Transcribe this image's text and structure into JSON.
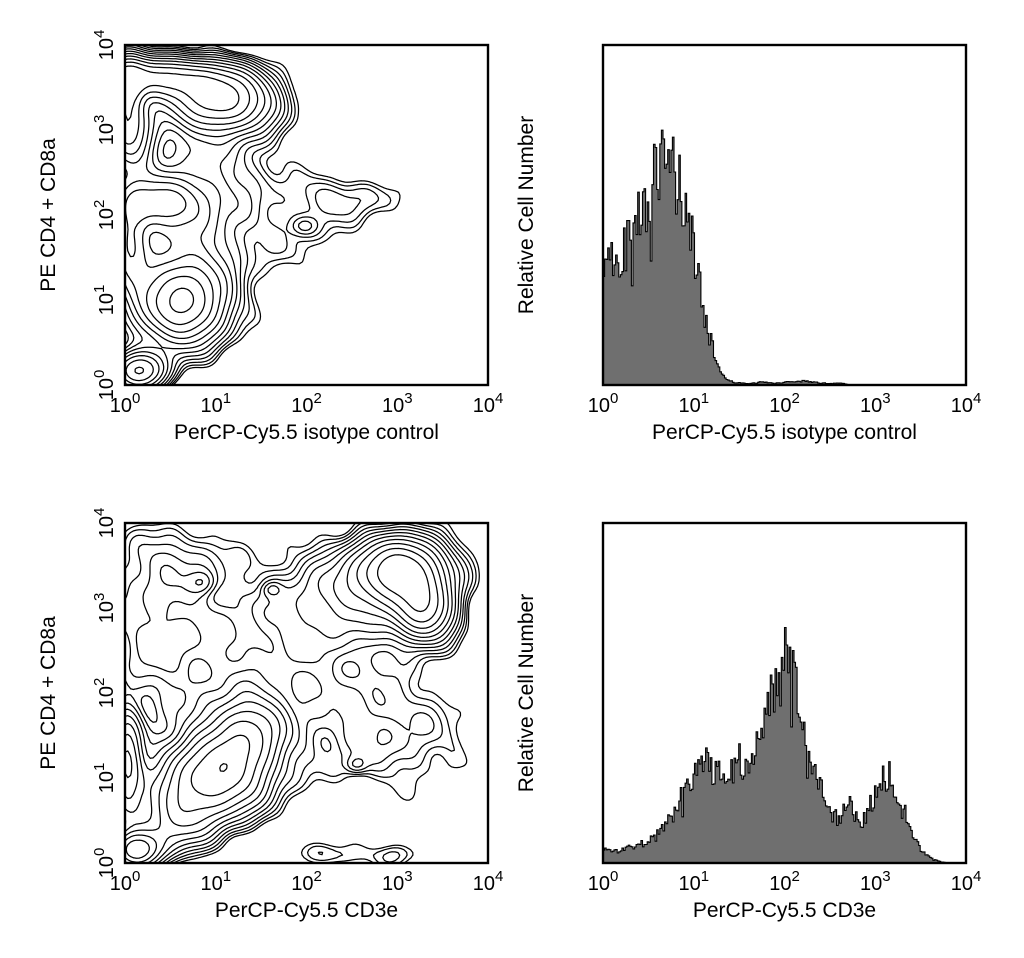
{
  "figure": {
    "background": "#ffffff",
    "line_color": "#000000",
    "text_color": "#000000",
    "histogram_fill": "#6f6f6f",
    "frame_stroke_width": 2.4,
    "contour_stroke_width": 1.25,
    "histogram_stroke_width": 1.1
  },
  "axis": {
    "scale": "log",
    "range": [
      1,
      10000
    ],
    "tick_base": "10",
    "tick_exponents": [
      "0",
      "1",
      "2",
      "3",
      "4"
    ]
  },
  "chart_data": [
    {
      "type": "contour",
      "panel": "top-left",
      "xlabel": "PerCP-Cy5.5 isotype control",
      "ylabel": "PE CD4 + CD8a",
      "xscale": "log",
      "yscale": "log",
      "xlim": [
        1,
        10000
      ],
      "ylim": [
        1,
        10000
      ],
      "levels": {
        "count": 12,
        "min": 0.07,
        "max": 0.9
      },
      "component_format": "[log10(x) center, log10(y) center, sigma_x, sigma_y, amplitude]",
      "components": [
        [
          1.05,
          3.35,
          0.38,
          0.24,
          0.95
        ],
        [
          0.3,
          3.62,
          0.5,
          0.16,
          0.85
        ],
        [
          0.02,
          3.45,
          0.12,
          0.28,
          0.6
        ],
        [
          0.05,
          2.95,
          0.18,
          0.3,
          0.65
        ],
        [
          0.35,
          2.15,
          0.33,
          0.2,
          0.5
        ],
        [
          0.05,
          1.65,
          0.14,
          0.4,
          0.45
        ],
        [
          0.62,
          0.95,
          0.33,
          0.33,
          0.85
        ],
        [
          0.16,
          0.17,
          0.2,
          0.16,
          0.7
        ],
        [
          2.45,
          2.2,
          0.38,
          0.18,
          0.13
        ],
        [
          1.97,
          1.87,
          0.1,
          0.08,
          0.11
        ],
        [
          1.85,
          1.8,
          0.6,
          0.45,
          0.08
        ],
        [
          0.9,
          2.6,
          0.5,
          0.5,
          0.18
        ],
        [
          0.7,
          1.6,
          0.4,
          0.5,
          0.25
        ]
      ],
      "noise_amp": 0.012
    },
    {
      "type": "histogram",
      "panel": "top-right",
      "xlabel": "PerCP-Cy5.5 isotype control",
      "ylabel": "Relative Cell Number",
      "xscale": "log",
      "xlim": [
        1,
        10000
      ],
      "bins": 230,
      "seed": 42,
      "noise_amp": 0.2,
      "envelope_format": "[log10(x), relative height 0..1]",
      "envelope": [
        [
          0.0,
          0.33
        ],
        [
          0.06,
          0.4
        ],
        [
          0.12,
          0.36
        ],
        [
          0.2,
          0.42
        ],
        [
          0.3,
          0.45
        ],
        [
          0.4,
          0.52
        ],
        [
          0.5,
          0.58
        ],
        [
          0.6,
          0.66
        ],
        [
          0.68,
          0.64
        ],
        [
          0.75,
          0.67
        ],
        [
          0.82,
          0.62
        ],
        [
          0.9,
          0.56
        ],
        [
          0.98,
          0.45
        ],
        [
          1.05,
          0.33
        ],
        [
          1.12,
          0.22
        ],
        [
          1.2,
          0.12
        ],
        [
          1.28,
          0.05
        ],
        [
          1.35,
          0.02
        ],
        [
          1.45,
          0.008
        ],
        [
          1.6,
          0.004
        ],
        [
          1.75,
          0.009
        ],
        [
          1.9,
          0.005
        ],
        [
          2.05,
          0.01
        ],
        [
          2.2,
          0.012
        ],
        [
          2.35,
          0.008
        ],
        [
          2.5,
          0.004
        ],
        [
          2.62,
          0.006
        ],
        [
          2.72,
          0.0
        ],
        [
          4.0,
          0.0
        ]
      ]
    },
    {
      "type": "contour",
      "panel": "bottom-left",
      "xlabel": "PerCP-Cy5.5 CD3e",
      "ylabel": "PE CD4 + CD8a",
      "xscale": "log",
      "yscale": "log",
      "xlim": [
        1,
        10000
      ],
      "ylim": [
        1,
        10000
      ],
      "levels": {
        "count": 12,
        "min": 0.07,
        "max": 0.9
      },
      "component_format": "[log10(x) center, log10(y) center, sigma_x, sigma_y, amplitude]",
      "components": [
        [
          3.05,
          3.45,
          0.32,
          0.26,
          0.9
        ],
        [
          3.3,
          2.95,
          0.22,
          0.24,
          0.65
        ],
        [
          2.75,
          3.3,
          0.55,
          0.35,
          0.25
        ],
        [
          1.0,
          1.02,
          0.38,
          0.33,
          0.8
        ],
        [
          1.35,
          1.55,
          0.28,
          0.3,
          0.45
        ],
        [
          0.55,
          0.5,
          0.3,
          0.28,
          0.35
        ],
        [
          0.13,
          0.15,
          0.18,
          0.15,
          0.6
        ],
        [
          0.02,
          1.15,
          0.12,
          0.4,
          0.45
        ],
        [
          0.85,
          3.3,
          0.1,
          0.09,
          0.13
        ],
        [
          1.62,
          3.22,
          0.07,
          0.06,
          0.1
        ],
        [
          2.55,
          1.15,
          0.08,
          0.07,
          0.1
        ],
        [
          2.3,
          0.1,
          0.3,
          0.12,
          0.12
        ],
        [
          3.0,
          0.1,
          0.18,
          0.12,
          0.11
        ],
        [
          2.95,
          1.5,
          0.6,
          0.45,
          0.14
        ],
        [
          1.6,
          2.3,
          0.9,
          0.75,
          0.12
        ],
        [
          0.35,
          2.7,
          0.45,
          0.55,
          0.16
        ],
        [
          0.5,
          3.55,
          0.45,
          0.3,
          0.14
        ],
        [
          2.2,
          2.9,
          0.5,
          0.4,
          0.12
        ]
      ],
      "noise_amp": 0.012
    },
    {
      "type": "histogram",
      "panel": "bottom-right",
      "xlabel": "PerCP-Cy5.5 CD3e",
      "ylabel": "Relative Cell Number",
      "xscale": "log",
      "xlim": [
        1,
        10000
      ],
      "bins": 230,
      "seed": 1337,
      "noise_amp": 0.18,
      "envelope_format": "[log10(x), relative height 0..1]",
      "envelope": [
        [
          0.0,
          0.045
        ],
        [
          0.15,
          0.035
        ],
        [
          0.3,
          0.05
        ],
        [
          0.45,
          0.06
        ],
        [
          0.6,
          0.09
        ],
        [
          0.75,
          0.14
        ],
        [
          0.9,
          0.22
        ],
        [
          1.0,
          0.28
        ],
        [
          1.08,
          0.34
        ],
        [
          1.15,
          0.3
        ],
        [
          1.22,
          0.28
        ],
        [
          1.3,
          0.31
        ],
        [
          1.38,
          0.27
        ],
        [
          1.5,
          0.3
        ],
        [
          1.6,
          0.33
        ],
        [
          1.7,
          0.38
        ],
        [
          1.8,
          0.45
        ],
        [
          1.9,
          0.52
        ],
        [
          2.0,
          0.62
        ],
        [
          2.05,
          0.6
        ],
        [
          2.12,
          0.52
        ],
        [
          2.2,
          0.42
        ],
        [
          2.3,
          0.3
        ],
        [
          2.4,
          0.22
        ],
        [
          2.5,
          0.15
        ],
        [
          2.6,
          0.13
        ],
        [
          2.7,
          0.19
        ],
        [
          2.78,
          0.14
        ],
        [
          2.88,
          0.13
        ],
        [
          2.98,
          0.2
        ],
        [
          3.08,
          0.26
        ],
        [
          3.15,
          0.27
        ],
        [
          3.22,
          0.22
        ],
        [
          3.32,
          0.15
        ],
        [
          3.42,
          0.08
        ],
        [
          3.52,
          0.035
        ],
        [
          3.62,
          0.012
        ],
        [
          3.72,
          0.004
        ],
        [
          3.8,
          0.0
        ],
        [
          4.0,
          0.0
        ]
      ]
    }
  ]
}
